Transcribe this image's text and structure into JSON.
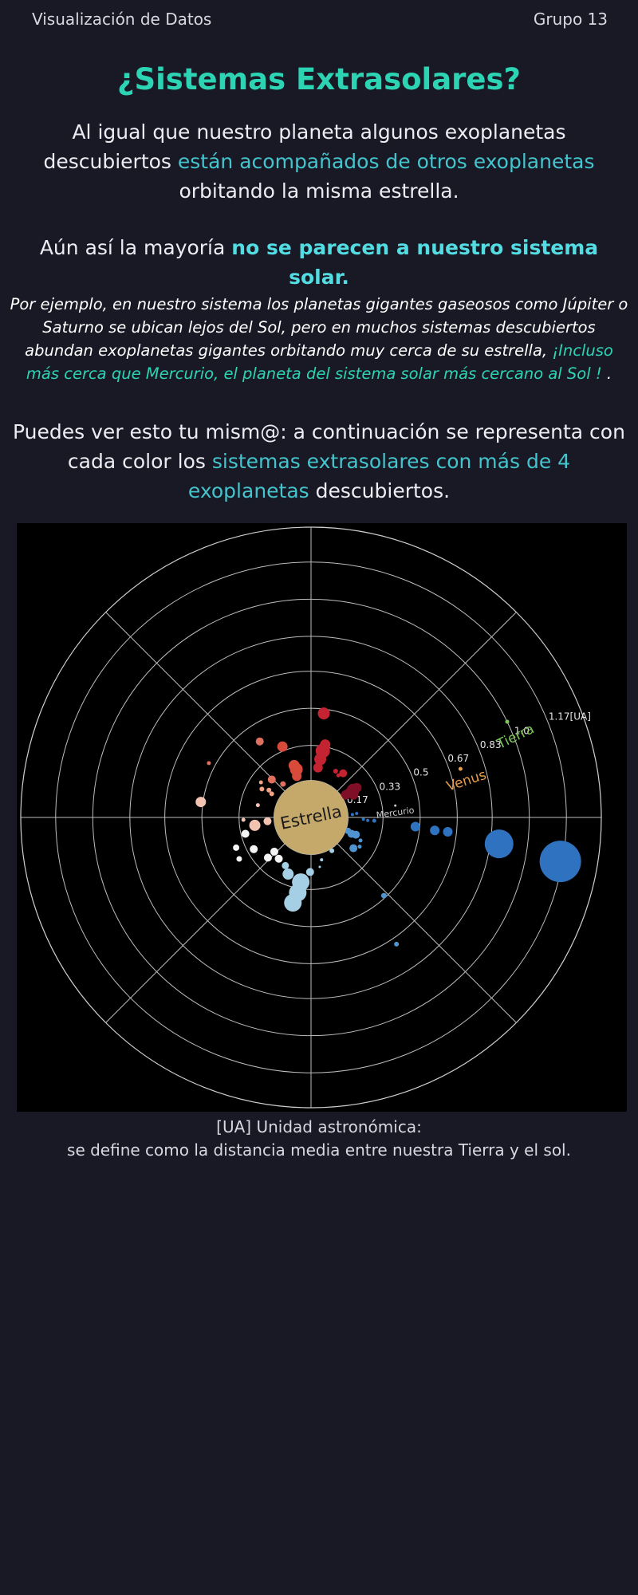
{
  "header": {
    "site_title": "Visualización de Datos",
    "group_label": "Grupo 13"
  },
  "heading": "¿Sistemas Extrasolares?",
  "intro": {
    "part1": "Al igual que nuestro planeta algunos exoplanetas descubiertos ",
    "highlight": "están acompañados de otros exoplanetas",
    "part2": " orbitando la misma estrella."
  },
  "statement": {
    "part1": "Aún así la mayoría ",
    "highlight": "no se parecen a nuestro sistema solar."
  },
  "example": {
    "part1": "Por ejemplo,  en nuestro sistema los planetas gigantes gaseosos como Júpiter o Saturno se ubican lejos del Sol, pero en muchos sistemas descubiertos abundan exoplanetas gigantes orbitando muy cerca de su estrella, ",
    "highlight": "¡Incluso más cerca que Mercurio, el planeta del sistema solar más cercano al Sol !",
    "part2": " ."
  },
  "invite": {
    "part1": "Puedes ver esto tu mism@: a continuación se representa con cada color los ",
    "highlight": "sistemas extrasolares con más de 4 exoplanetas",
    "part2": " descubiertos."
  },
  "caption": {
    "line1": "[UA] Unidad astronómica:",
    "line2": "se define como la distancia media entre nuestra Tierra y el sol."
  },
  "colors": {
    "accent": "#2dd4b4",
    "highlight": "#44c4cc",
    "background": "#191825",
    "star": "#c5a96a",
    "venus": "#e89c4b",
    "tierra": "#7cc85a",
    "mercurio": "#cccccc"
  },
  "chart_data": {
    "type": "scatter",
    "projection": "polar",
    "radial_unit": "[UA]",
    "radial_ticks": [
      0.17,
      0.33,
      0.5,
      0.67,
      0.83,
      1.0,
      1.17
    ],
    "radial_tick_labels": [
      "0.17",
      "0.33",
      "0.5",
      "0.67",
      "0.83",
      "1.0",
      "1.17[UA]"
    ],
    "rmax": 1.33,
    "grid": true,
    "angular_gridlines_deg": [
      0,
      45,
      90,
      135,
      180,
      225,
      270,
      315
    ],
    "star": {
      "label": "Estrella",
      "radius_ua": 0.17,
      "color": "#c5a96a"
    },
    "solar_system": [
      {
        "name": "Mercurio",
        "r": 0.39,
        "theta": 8,
        "size": 1.5,
        "color": "#cccccc"
      },
      {
        "name": "Venus",
        "r": 0.72,
        "theta": 18,
        "size": 2.5,
        "color": "#e89c4b"
      },
      {
        "name": "Tierra",
        "r": 1.0,
        "theta": 26,
        "size": 2.5,
        "color": "#7cc85a"
      }
    ],
    "systems": [
      {
        "color": "#2f72c0",
        "points": [
          {
            "r": 0.19,
            "theta": 4,
            "size": 2
          },
          {
            "r": 0.21,
            "theta": 5,
            "size": 2
          },
          {
            "r": 0.24,
            "theta": -2,
            "size": 2
          },
          {
            "r": 0.26,
            "theta": -3,
            "size": 2
          },
          {
            "r": 0.29,
            "theta": -3,
            "size": 2.5
          },
          {
            "r": 0.48,
            "theta": -5,
            "size": 6
          },
          {
            "r": 0.57,
            "theta": -6,
            "size": 6
          },
          {
            "r": 0.63,
            "theta": -6,
            "size": 6
          },
          {
            "r": 0.87,
            "theta": -8,
            "size": 18
          },
          {
            "r": 1.16,
            "theta": -10,
            "size": 26
          }
        ]
      },
      {
        "color": "#4f94d0",
        "points": [
          {
            "r": 0.18,
            "theta": -20,
            "size": 4
          },
          {
            "r": 0.2,
            "theta": -22,
            "size": 5
          },
          {
            "r": 0.22,
            "theta": -21,
            "size": 5
          },
          {
            "r": 0.25,
            "theta": -25,
            "size": 2.5
          },
          {
            "r": 0.26,
            "theta": -31,
            "size": 2.5
          },
          {
            "r": 0.24,
            "theta": -36,
            "size": 5
          },
          {
            "r": 0.49,
            "theta": -47,
            "size": 3.5
          },
          {
            "r": 0.7,
            "theta": -56,
            "size": 3
          }
        ]
      },
      {
        "color": "#a4cfe5",
        "points": [
          {
            "r": 0.18,
            "theta": -58,
            "size": 3
          },
          {
            "r": 0.2,
            "theta": -76,
            "size": 2
          },
          {
            "r": 0.23,
            "theta": -80,
            "size": 1.5
          },
          {
            "r": 0.25,
            "theta": -91,
            "size": 5
          },
          {
            "r": 0.3,
            "theta": -98,
            "size": 8
          },
          {
            "r": 0.3,
            "theta": -99,
            "size": 11
          },
          {
            "r": 0.35,
            "theta": -100,
            "size": 11
          },
          {
            "r": 0.4,
            "theta": -102,
            "size": 11
          },
          {
            "r": 0.28,
            "theta": -112,
            "size": 7
          },
          {
            "r": 0.25,
            "theta": -118,
            "size": 4.5
          }
        ]
      },
      {
        "color": "#f5f5f5",
        "points": [
          {
            "r": 0.24,
            "theta": -128,
            "size": 5
          },
          {
            "r": 0.23,
            "theta": -137,
            "size": 5
          },
          {
            "r": 0.27,
            "theta": -137,
            "size": 5
          },
          {
            "r": 0.3,
            "theta": -151,
            "size": 5
          },
          {
            "r": 0.38,
            "theta": -150,
            "size": 3.5
          },
          {
            "r": 0.37,
            "theta": -158,
            "size": 4
          },
          {
            "r": 0.31,
            "theta": -166,
            "size": 5
          }
        ]
      },
      {
        "color": "#f3c3b2",
        "points": [
          {
            "r": 0.2,
            "theta": -175,
            "size": 5
          },
          {
            "r": 0.26,
            "theta": -172,
            "size": 7
          },
          {
            "r": 0.31,
            "theta": -178,
            "size": 2.5
          },
          {
            "r": 0.25,
            "theta": 167,
            "size": 2.5
          },
          {
            "r": 0.51,
            "theta": 172,
            "size": 6.5
          }
        ]
      },
      {
        "color": "#f2a284",
        "points": [
          {
            "r": 0.21,
            "theta": 149,
            "size": 3
          },
          {
            "r": 0.23,
            "theta": 147,
            "size": 3
          },
          {
            "r": 0.26,
            "theta": 150,
            "size": 3
          },
          {
            "r": 0.28,
            "theta": 145,
            "size": 2.5
          }
        ]
      },
      {
        "color": "#e0705e",
        "points": [
          {
            "r": 0.2,
            "theta": 130,
            "size": 3.5
          },
          {
            "r": 0.25,
            "theta": 136,
            "size": 5
          },
          {
            "r": 0.42,
            "theta": 124,
            "size": 5
          },
          {
            "r": 0.53,
            "theta": 152,
            "size": 2.5
          }
        ]
      },
      {
        "color": "#d84a3a",
        "points": [
          {
            "r": 0.2,
            "theta": 109,
            "size": 6
          },
          {
            "r": 0.23,
            "theta": 107,
            "size": 8
          },
          {
            "r": 0.25,
            "theta": 108,
            "size": 7
          },
          {
            "r": 0.35,
            "theta": 112,
            "size": 6.5
          }
        ]
      },
      {
        "color": "#c42432",
        "points": [
          {
            "r": 0.23,
            "theta": 82,
            "size": 6
          },
          {
            "r": 0.27,
            "theta": 81,
            "size": 7.5
          },
          {
            "r": 0.31,
            "theta": 80,
            "size": 9
          },
          {
            "r": 0.34,
            "theta": 79,
            "size": 6.5
          },
          {
            "r": 0.48,
            "theta": 83,
            "size": 7.5
          },
          {
            "r": 0.24,
            "theta": 62,
            "size": 3
          },
          {
            "r": 0.23,
            "theta": 57,
            "size": 2.5
          },
          {
            "r": 0.25,
            "theta": 54,
            "size": 5
          }
        ]
      },
      {
        "color": "#7e0f26",
        "points": [
          {
            "r": 0.19,
            "theta": 33,
            "size": 6
          },
          {
            "r": 0.21,
            "theta": 33,
            "size": 6
          },
          {
            "r": 0.23,
            "theta": 33,
            "size": 8
          },
          {
            "r": 0.25,
            "theta": 33,
            "size": 6
          },
          {
            "r": 0.22,
            "theta": 28,
            "size": 6
          }
        ]
      }
    ]
  }
}
